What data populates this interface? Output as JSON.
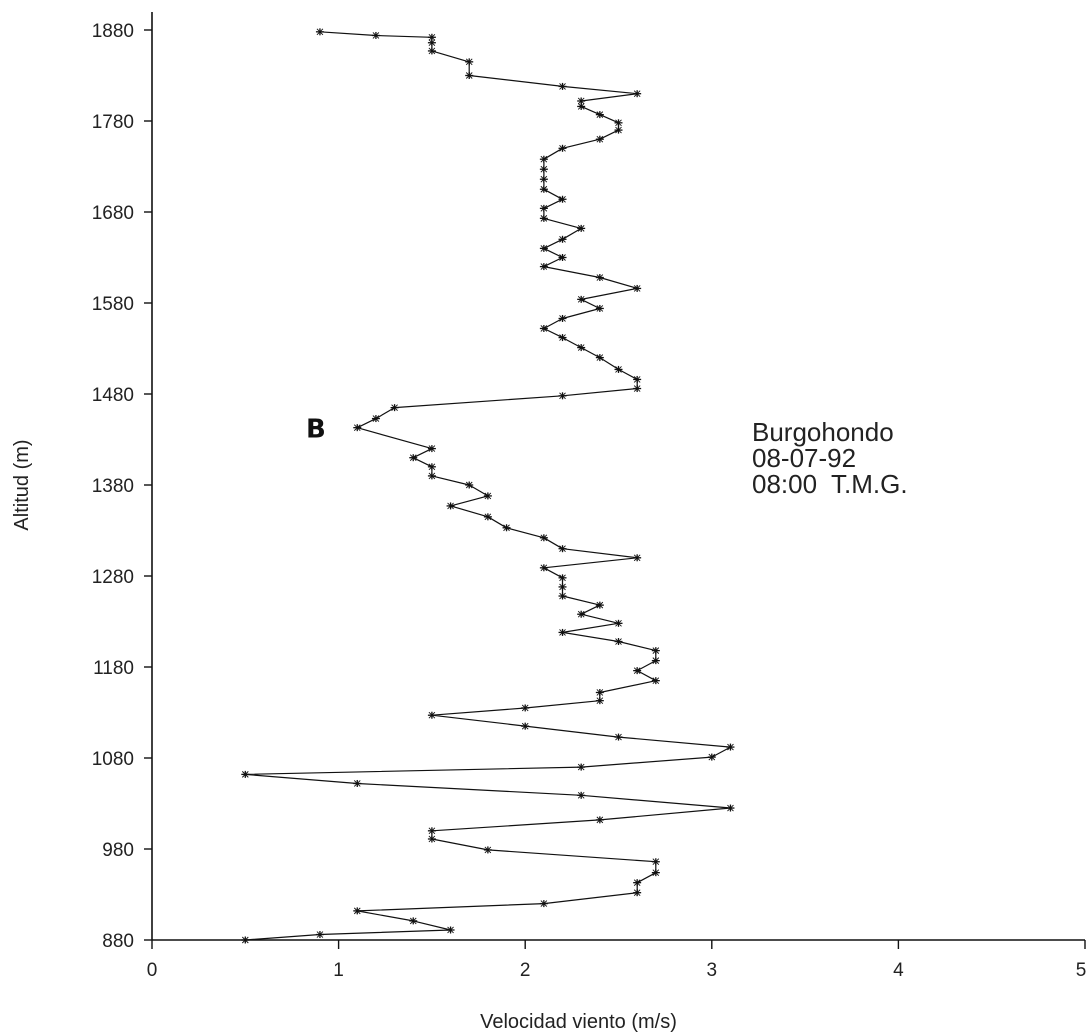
{
  "chart_data": {
    "type": "line",
    "title": "",
    "xlabel": "Velocidad viento (m/s)",
    "ylabel": "Altitud (m)",
    "xlim": [
      0,
      5
    ],
    "ylim": [
      880,
      1880
    ],
    "x_ticks": [
      0,
      1,
      2,
      3,
      4,
      5
    ],
    "y_ticks": [
      880,
      980,
      1080,
      1180,
      1280,
      1380,
      1480,
      1580,
      1680,
      1780,
      1880
    ],
    "grid": false,
    "annotations": [
      "Burgohondo",
      "08-07-92",
      "08:00  T.M.G."
    ],
    "marker_label": {
      "text": "B",
      "x": 1.05,
      "y": 1443
    },
    "series": [
      {
        "x": [
          0.5,
          0.9,
          1.6,
          1.4,
          1.1,
          2.1,
          2.6,
          2.6,
          2.7,
          2.7,
          1.8,
          1.5,
          1.5,
          2.4,
          3.1,
          2.3,
          1.1,
          0.5,
          2.3,
          3.0,
          3.1,
          2.5,
          2.0,
          1.5,
          2.0,
          2.4,
          2.4,
          2.7,
          2.6,
          2.7,
          2.7,
          2.5,
          2.2,
          2.5,
          2.3,
          2.4,
          2.2,
          2.2,
          2.2,
          2.1,
          2.6,
          2.2,
          2.1,
          1.9,
          1.8,
          1.6,
          1.8,
          1.7,
          1.5,
          1.5,
          1.4,
          1.5,
          1.1,
          1.2,
          1.3,
          2.2,
          2.6,
          2.6,
          2.5,
          2.4,
          2.3,
          2.2,
          2.1,
          2.2,
          2.4,
          2.3,
          2.6,
          2.4,
          2.1,
          2.2,
          2.1,
          2.2,
          2.3,
          2.1,
          2.1,
          2.2,
          2.1,
          2.1,
          2.1,
          2.1,
          2.2,
          2.4,
          2.5,
          2.5,
          2.4,
          2.3,
          2.3,
          2.6,
          2.2,
          1.7,
          1.7,
          1.5,
          1.5,
          1.5,
          1.2,
          0.9
        ],
        "y": [
          880,
          886,
          891,
          901,
          912,
          920,
          932,
          943,
          954,
          966,
          979,
          991,
          1000,
          1012,
          1025,
          1039,
          1052,
          1062,
          1070,
          1081,
          1092,
          1103,
          1115,
          1127,
          1135,
          1143,
          1152,
          1165,
          1176,
          1187,
          1198,
          1208,
          1218,
          1228,
          1238,
          1248,
          1258,
          1268,
          1278,
          1289,
          1300,
          1310,
          1322,
          1333,
          1345,
          1357,
          1368,
          1380,
          1390,
          1400,
          1410,
          1420,
          1443,
          1453,
          1465,
          1478,
          1486,
          1496,
          1507,
          1520,
          1531,
          1542,
          1552,
          1563,
          1574,
          1584,
          1596,
          1608,
          1620,
          1630,
          1640,
          1650,
          1662,
          1673,
          1684,
          1694,
          1705,
          1716,
          1727,
          1738,
          1750,
          1760,
          1770,
          1778,
          1787,
          1796,
          1802,
          1810,
          1818,
          1830,
          1845,
          1857,
          1866,
          1872,
          1874,
          1878
        ]
      }
    ]
  }
}
